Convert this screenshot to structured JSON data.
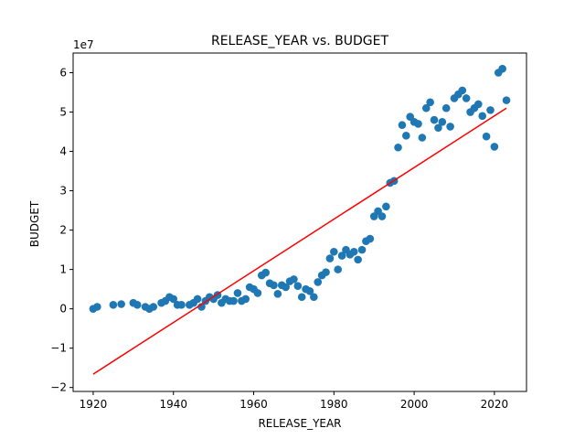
{
  "chart_data": {
    "type": "scatter",
    "title": "RELEASE_YEAR vs. BUDGET",
    "xlabel": "RELEASE_YEAR",
    "ylabel": "BUDGET",
    "y_offset_label": "1e7",
    "xlim": [
      1915,
      2028
    ],
    "ylim": [
      -2.1,
      6.5
    ],
    "x_ticks": [
      1920,
      1940,
      1960,
      1980,
      2000,
      2020
    ],
    "y_ticks": [
      -2,
      -1,
      0,
      1,
      2,
      3,
      4,
      5,
      6
    ],
    "grid": false,
    "point_color": "#1f77b4",
    "line_color": "#ff0000",
    "series": [
      {
        "x": [
          1920,
          1921,
          1925,
          1927,
          1930,
          1931,
          1933,
          1934,
          1935,
          1937,
          1938,
          1939,
          1940,
          1941,
          1942,
          1944,
          1945,
          1946,
          1947,
          1948,
          1949,
          1950,
          1951,
          1952,
          1953,
          1954,
          1955,
          1956,
          1957,
          1958,
          1959,
          1960,
          1961,
          1962,
          1963,
          1964,
          1965,
          1966,
          1967,
          1968,
          1969,
          1970,
          1971,
          1972,
          1973,
          1974,
          1975,
          1976,
          1977,
          1978,
          1979,
          1980,
          1981,
          1982,
          1983,
          1984,
          1985,
          1986,
          1987,
          1988,
          1989,
          1990,
          1991,
          1992,
          1993,
          1994,
          1995,
          1996,
          1997,
          1998,
          1999,
          2000,
          2001,
          2002,
          2003,
          2004,
          2005,
          2006,
          2007,
          2008,
          2009,
          2010,
          2011,
          2012,
          2013,
          2014,
          2015,
          2016,
          2017,
          2018,
          2019,
          2020,
          2021,
          2022,
          2023
        ],
        "y": [
          0.0,
          0.05,
          0.1,
          0.12,
          0.15,
          0.1,
          0.05,
          0.0,
          0.05,
          0.15,
          0.2,
          0.3,
          0.25,
          0.1,
          0.1,
          0.1,
          0.15,
          0.25,
          0.05,
          0.2,
          0.3,
          0.25,
          0.35,
          0.15,
          0.25,
          0.2,
          0.2,
          0.4,
          0.2,
          0.25,
          0.55,
          0.5,
          0.4,
          0.85,
          0.92,
          0.65,
          0.6,
          0.38,
          0.6,
          0.55,
          0.7,
          0.75,
          0.58,
          0.3,
          0.5,
          0.45,
          0.3,
          0.68,
          0.85,
          0.93,
          1.28,
          1.45,
          1.0,
          1.35,
          1.5,
          1.38,
          1.45,
          1.25,
          1.5,
          1.72,
          1.78,
          2.35,
          2.48,
          2.35,
          2.6,
          3.2,
          3.25,
          4.1,
          4.67,
          4.4,
          4.88,
          4.75,
          4.7,
          4.35,
          5.1,
          5.25,
          4.8,
          4.6,
          4.75,
          5.1,
          4.63,
          5.35,
          5.45,
          5.55,
          5.35,
          5.0,
          5.1,
          5.2,
          4.9,
          4.38,
          5.05,
          4.12,
          6.0,
          6.1,
          5.3
        ]
      }
    ],
    "trendline": {
      "x": [
        1920,
        2023
      ],
      "y": [
        -1.66,
        5.1
      ]
    }
  }
}
